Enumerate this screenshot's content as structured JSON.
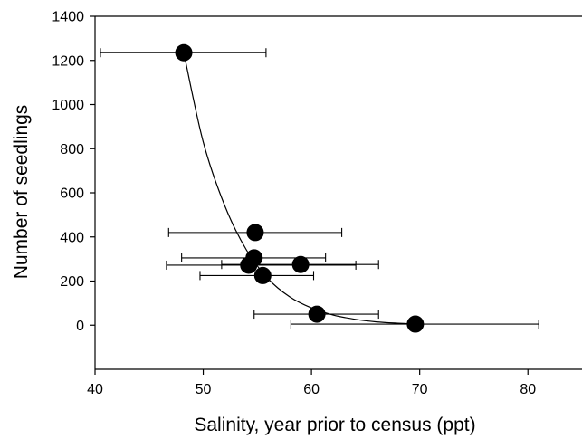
{
  "chart_data": {
    "type": "scatter",
    "title": "",
    "xlabel": "Salinity, year prior to census (ppt)",
    "ylabel": "Number of seedlings",
    "xlim": [
      40,
      85
    ],
    "ylim": [
      -200,
      1400
    ],
    "x_ticks": [
      40,
      50,
      60,
      70,
      80
    ],
    "y_ticks": [
      0,
      200,
      400,
      600,
      800,
      1000,
      1200,
      1400
    ],
    "grid": false,
    "legend": "none",
    "points": [
      {
        "x": 48.2,
        "y": 1235,
        "x_err_low": 40.5,
        "x_err_high": 55.8
      },
      {
        "x": 54.8,
        "y": 420,
        "x_err_low": 46.8,
        "x_err_high": 62.8
      },
      {
        "x": 54.7,
        "y": 305,
        "x_err_low": 48.0,
        "x_err_high": 61.3
      },
      {
        "x": 54.2,
        "y": 272,
        "x_err_low": 46.6,
        "x_err_high": 64.1
      },
      {
        "x": 59.0,
        "y": 275,
        "x_err_low": 51.7,
        "x_err_high": 66.2
      },
      {
        "x": 55.5,
        "y": 225,
        "x_err_low": 49.7,
        "x_err_high": 60.2
      },
      {
        "x": 60.5,
        "y": 50,
        "x_err_low": 54.7,
        "x_err_high": 66.2
      },
      {
        "x": 69.6,
        "y": 5,
        "x_err_low": 58.1,
        "x_err_high": 81.0
      }
    ],
    "fit_curve": {
      "description": "exponential decay fit",
      "x_range": [
        48.2,
        69.6
      ],
      "points": [
        [
          48.2,
          1235
        ],
        [
          50,
          830
        ],
        [
          52,
          540
        ],
        [
          54,
          340
        ],
        [
          56,
          210
        ],
        [
          58,
          128
        ],
        [
          60,
          78
        ],
        [
          62,
          46
        ],
        [
          64,
          27
        ],
        [
          66,
          15
        ],
        [
          68,
          9
        ],
        [
          69.6,
          6
        ]
      ]
    }
  }
}
